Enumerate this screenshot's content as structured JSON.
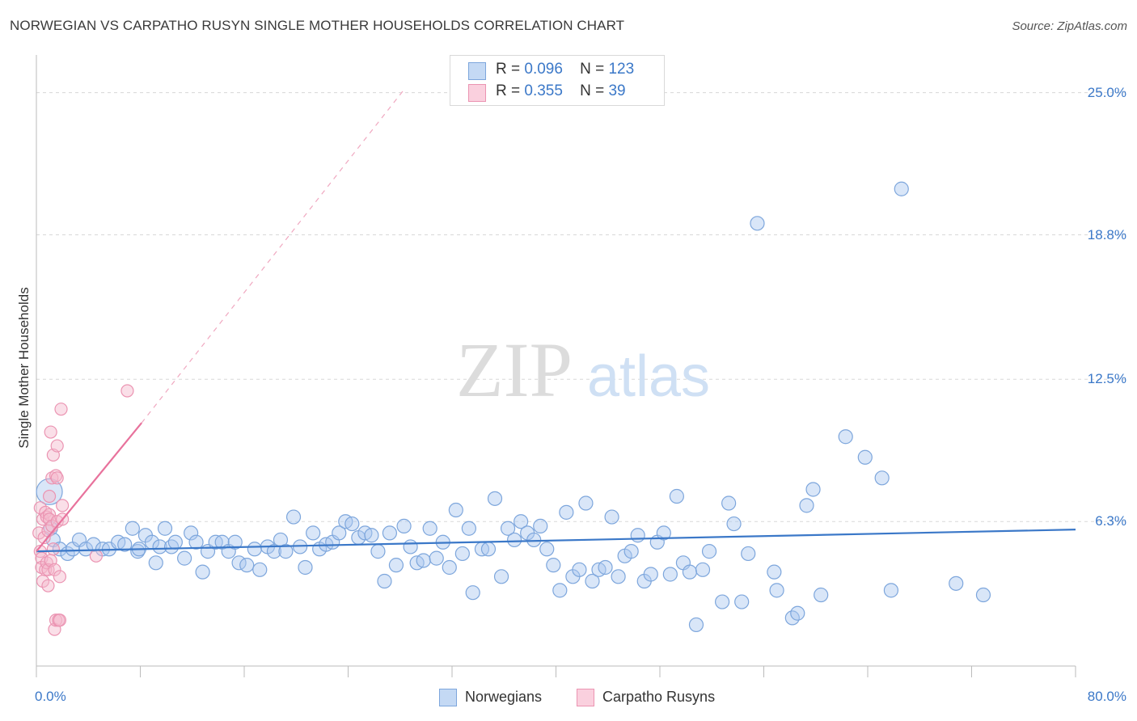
{
  "header": {
    "title": "NORWEGIAN VS CARPATHO RUSYN SINGLE MOTHER HOUSEHOLDS CORRELATION CHART",
    "source": "Source: ZipAtlas.com"
  },
  "legend": {
    "row1": {
      "r_label": "R =",
      "r_value": "0.096",
      "n_label": "N =",
      "n_value": "123"
    },
    "row2": {
      "r_label": "R =",
      "r_value": "0.355",
      "n_label": "N =",
      "n_value": "39"
    }
  },
  "watermark": {
    "zip": "ZIP",
    "atlas": "atlas"
  },
  "colors": {
    "blue": "#3b78c8",
    "blue_fill": "#aac8f0",
    "pink": "#e8729c",
    "pink_fill": "#f4b8cc",
    "grid": "#d8d8d8"
  },
  "chart_data": {
    "type": "scatter",
    "title": "NORWEGIAN VS CARPATHO RUSYN SINGLE MOTHER HOUSEHOLDS CORRELATION CHART",
    "xlabel": "",
    "ylabel": "Single Mother Households",
    "xlim": [
      0,
      80
    ],
    "ylim": [
      0,
      26.5
    ],
    "x_tick_labels": {
      "min": "0.0%",
      "max": "80.0%"
    },
    "y_ticks": [
      6.3,
      12.5,
      18.8,
      25.0
    ],
    "y_tick_labels": [
      "6.3%",
      "12.5%",
      "18.8%",
      "25.0%"
    ],
    "legend_position": "bottom-center",
    "series": [
      {
        "name": "Norwegians",
        "R": 0.096,
        "N": 123,
        "trend": {
          "x": [
            0,
            80
          ],
          "y": [
            5.0,
            5.95
          ],
          "style": "solid"
        },
        "points": [
          [
            1.0,
            7.6
          ],
          [
            1.1,
            6.0
          ],
          [
            1.3,
            5.5
          ],
          [
            1.8,
            5.1
          ],
          [
            2.4,
            4.9
          ],
          [
            2.8,
            5.1
          ],
          [
            3.3,
            5.5
          ],
          [
            3.8,
            5.1
          ],
          [
            4.4,
            5.3
          ],
          [
            5.1,
            5.1
          ],
          [
            5.6,
            5.1
          ],
          [
            6.3,
            5.4
          ],
          [
            6.8,
            5.3
          ],
          [
            7.4,
            6.0
          ],
          [
            7.8,
            5.0
          ],
          [
            7.9,
            5.1
          ],
          [
            8.4,
            5.7
          ],
          [
            8.9,
            5.4
          ],
          [
            9.2,
            4.5
          ],
          [
            9.5,
            5.2
          ],
          [
            9.9,
            6.0
          ],
          [
            10.4,
            5.2
          ],
          [
            10.7,
            5.4
          ],
          [
            11.4,
            4.7
          ],
          [
            11.9,
            5.8
          ],
          [
            12.3,
            5.4
          ],
          [
            12.8,
            4.1
          ],
          [
            13.2,
            5.0
          ],
          [
            13.8,
            5.4
          ],
          [
            14.3,
            5.4
          ],
          [
            14.8,
            5.0
          ],
          [
            15.3,
            5.4
          ],
          [
            15.6,
            4.5
          ],
          [
            16.2,
            4.4
          ],
          [
            16.8,
            5.1
          ],
          [
            17.2,
            4.2
          ],
          [
            17.8,
            5.2
          ],
          [
            18.3,
            5.0
          ],
          [
            18.8,
            5.5
          ],
          [
            19.2,
            5.0
          ],
          [
            19.8,
            6.5
          ],
          [
            20.3,
            5.2
          ],
          [
            20.7,
            4.3
          ],
          [
            21.3,
            5.8
          ],
          [
            21.8,
            5.1
          ],
          [
            22.3,
            5.3
          ],
          [
            22.8,
            5.4
          ],
          [
            23.3,
            5.8
          ],
          [
            23.8,
            6.3
          ],
          [
            24.3,
            6.2
          ],
          [
            24.8,
            5.6
          ],
          [
            25.3,
            5.8
          ],
          [
            25.8,
            5.7
          ],
          [
            26.3,
            5.0
          ],
          [
            26.8,
            3.7
          ],
          [
            27.2,
            5.8
          ],
          [
            27.7,
            4.4
          ],
          [
            28.3,
            6.1
          ],
          [
            28.8,
            5.2
          ],
          [
            29.3,
            4.5
          ],
          [
            29.8,
            4.6
          ],
          [
            30.3,
            6.0
          ],
          [
            30.8,
            4.7
          ],
          [
            31.3,
            5.4
          ],
          [
            31.8,
            4.3
          ],
          [
            32.3,
            6.8
          ],
          [
            32.8,
            4.9
          ],
          [
            33.3,
            6.0
          ],
          [
            33.6,
            3.2
          ],
          [
            34.3,
            5.1
          ],
          [
            34.8,
            5.1
          ],
          [
            35.3,
            7.3
          ],
          [
            35.8,
            3.9
          ],
          [
            36.3,
            6.0
          ],
          [
            36.8,
            5.5
          ],
          [
            37.3,
            6.3
          ],
          [
            37.8,
            5.8
          ],
          [
            38.3,
            5.5
          ],
          [
            38.8,
            6.1
          ],
          [
            39.3,
            5.1
          ],
          [
            39.8,
            4.4
          ],
          [
            40.3,
            3.3
          ],
          [
            40.8,
            6.7
          ],
          [
            41.3,
            3.9
          ],
          [
            41.8,
            4.2
          ],
          [
            42.3,
            7.1
          ],
          [
            42.8,
            3.7
          ],
          [
            43.3,
            4.2
          ],
          [
            43.8,
            4.3
          ],
          [
            44.3,
            6.5
          ],
          [
            44.8,
            3.9
          ],
          [
            45.3,
            4.8
          ],
          [
            45.8,
            5.0
          ],
          [
            46.3,
            5.7
          ],
          [
            46.8,
            3.7
          ],
          [
            47.3,
            4.0
          ],
          [
            47.8,
            5.4
          ],
          [
            48.3,
            5.8
          ],
          [
            48.8,
            4.0
          ],
          [
            49.3,
            7.4
          ],
          [
            49.8,
            4.5
          ],
          [
            50.3,
            4.1
          ],
          [
            50.8,
            1.8
          ],
          [
            51.3,
            4.2
          ],
          [
            51.8,
            5.0
          ],
          [
            52.8,
            2.8
          ],
          [
            53.3,
            7.1
          ],
          [
            53.7,
            6.2
          ],
          [
            54.3,
            2.8
          ],
          [
            54.8,
            4.9
          ],
          [
            55.5,
            19.3
          ],
          [
            56.8,
            4.1
          ],
          [
            57.0,
            3.3
          ],
          [
            58.2,
            2.1
          ],
          [
            58.6,
            2.3
          ],
          [
            59.3,
            7.0
          ],
          [
            59.8,
            7.7
          ],
          [
            60.4,
            3.1
          ],
          [
            62.3,
            10.0
          ],
          [
            63.8,
            9.1
          ],
          [
            65.1,
            8.2
          ],
          [
            65.8,
            3.3
          ],
          [
            66.6,
            20.8
          ],
          [
            70.8,
            3.6
          ],
          [
            72.9,
            3.1
          ]
        ]
      },
      {
        "name": "Carpatho Rusyns",
        "R": 0.355,
        "N": 39,
        "trend_solid": {
          "x": [
            0,
            8.1
          ],
          "y": [
            5.0,
            10.6
          ]
        },
        "trend_dashed": {
          "x": [
            8.1,
            28.4
          ],
          "y": [
            10.6,
            25.2
          ]
        },
        "points": [
          [
            0.2,
            5.8
          ],
          [
            0.3,
            6.9
          ],
          [
            0.3,
            5.0
          ],
          [
            0.4,
            4.7
          ],
          [
            0.4,
            4.3
          ],
          [
            0.5,
            6.4
          ],
          [
            0.5,
            3.7
          ],
          [
            0.6,
            5.6
          ],
          [
            0.7,
            6.7
          ],
          [
            0.7,
            4.2
          ],
          [
            0.8,
            6.5
          ],
          [
            0.8,
            4.5
          ],
          [
            0.9,
            5.9
          ],
          [
            0.9,
            4.2
          ],
          [
            0.9,
            3.5
          ],
          [
            1.0,
            6.6
          ],
          [
            1.0,
            6.4
          ],
          [
            1.0,
            7.4
          ],
          [
            1.1,
            10.2
          ],
          [
            1.1,
            4.6
          ],
          [
            1.2,
            8.2
          ],
          [
            1.2,
            6.1
          ],
          [
            1.3,
            5.1
          ],
          [
            1.3,
            9.2
          ],
          [
            1.4,
            4.2
          ],
          [
            1.4,
            1.6
          ],
          [
            1.5,
            2.0
          ],
          [
            1.5,
            8.3
          ],
          [
            1.6,
            9.6
          ],
          [
            1.6,
            6.3
          ],
          [
            1.6,
            8.2
          ],
          [
            1.7,
            2.0
          ],
          [
            1.8,
            2.0
          ],
          [
            1.8,
            3.9
          ],
          [
            1.9,
            11.2
          ],
          [
            2.0,
            6.4
          ],
          [
            2.0,
            7.0
          ],
          [
            4.6,
            4.8
          ],
          [
            7.0,
            12.0
          ]
        ]
      }
    ]
  },
  "bottom_legend": {
    "norwegians": "Norwegians",
    "carpatho": "Carpatho Rusyns"
  }
}
